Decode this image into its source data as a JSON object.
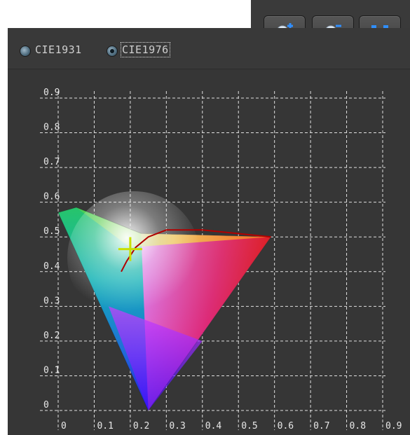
{
  "toolbar": {
    "buttons": [
      {
        "name": "zoom-in",
        "icon": "zoom-in-icon"
      },
      {
        "name": "zoom-out",
        "icon": "zoom-out-icon"
      },
      {
        "name": "fit",
        "icon": "fit-to-window-icon"
      }
    ]
  },
  "mode": {
    "options": [
      {
        "label": "CIE1931",
        "selected": false
      },
      {
        "label": "CIE1976",
        "selected": true
      }
    ]
  },
  "colors": {
    "panel": "#363636",
    "grid": "#e0e0e0",
    "locus_curve": "#b00000",
    "marker": "#c8e000"
  },
  "chart_data": {
    "type": "scatter",
    "title": "",
    "xlabel": "",
    "ylabel": "",
    "xlim": [
      0,
      0.9
    ],
    "ylim": [
      0,
      0.9
    ],
    "x_ticks": [
      "0",
      "0.1",
      "0.2",
      "0.3",
      "0.4",
      "0.5",
      "0.6",
      "0.7",
      "0.8",
      "0.9"
    ],
    "y_ticks": [
      "0",
      "0.1",
      "0.2",
      "0.3",
      "0.4",
      "0.5",
      "0.6",
      "0.7",
      "0.8",
      "0.9"
    ],
    "grid": true,
    "gamut_vertices": [
      {
        "x": 0.0,
        "y": 0.57
      },
      {
        "x": 0.05,
        "y": 0.585
      },
      {
        "x": 0.23,
        "y": 0.51
      },
      {
        "x": 0.59,
        "y": 0.5
      },
      {
        "x": 0.25,
        "y": 0.0
      }
    ],
    "planckian_locus": [
      {
        "x": 0.175,
        "y": 0.4
      },
      {
        "x": 0.19,
        "y": 0.43
      },
      {
        "x": 0.215,
        "y": 0.47
      },
      {
        "x": 0.25,
        "y": 0.5
      },
      {
        "x": 0.3,
        "y": 0.52
      },
      {
        "x": 0.4,
        "y": 0.52
      },
      {
        "x": 0.59,
        "y": 0.5
      }
    ],
    "marker": {
      "x": 0.2,
      "y": 0.465
    }
  }
}
